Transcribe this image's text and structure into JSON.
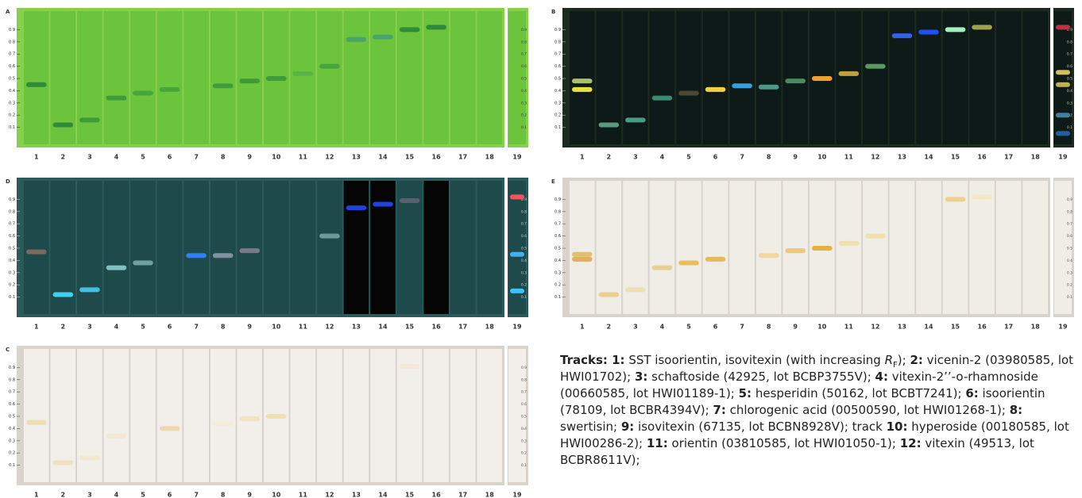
{
  "track_labels": [
    "1",
    "2",
    "3",
    "4",
    "5",
    "6",
    "7",
    "8",
    "9",
    "10",
    "11",
    "12",
    "13",
    "14",
    "15",
    "16",
    "17",
    "18",
    "19"
  ],
  "rf_lim": [
    0,
    1.0
  ],
  "rf_ticks": [
    0.9,
    0.8,
    0.7,
    0.6,
    0.5,
    0.4,
    0.3,
    0.2,
    0.1
  ],
  "panels": [
    {
      "label": "A",
      "plate_color": "#86d04c",
      "lane_color": "#6cc43c",
      "tick_color": "#2a4a20",
      "bands": [
        {
          "track": 1,
          "rf": 0.45,
          "color": "#2f8a3a"
        },
        {
          "track": 2,
          "rf": 0.12,
          "color": "#2f8a3a"
        },
        {
          "track": 3,
          "rf": 0.16,
          "color": "#3f9a3a"
        },
        {
          "track": 4,
          "rf": 0.34,
          "color": "#3f9a3a"
        },
        {
          "track": 5,
          "rf": 0.38,
          "color": "#4aa43c"
        },
        {
          "track": 6,
          "rf": 0.41,
          "color": "#4aa43c"
        },
        {
          "track": 8,
          "rf": 0.44,
          "color": "#3f9a3a"
        },
        {
          "track": 9,
          "rf": 0.48,
          "color": "#3f9a3a"
        },
        {
          "track": 10,
          "rf": 0.5,
          "color": "#3f9a3a"
        },
        {
          "track": 11,
          "rf": 0.54,
          "color": "#5ab444"
        },
        {
          "track": 12,
          "rf": 0.6,
          "color": "#4aa43c"
        },
        {
          "track": 13,
          "rf": 0.82,
          "color": "#4aa46a"
        },
        {
          "track": 14,
          "rf": 0.84,
          "color": "#4aa46a"
        },
        {
          "track": 15,
          "rf": 0.9,
          "color": "#2f8a3a"
        },
        {
          "track": 16,
          "rf": 0.92,
          "color": "#2f8a3a"
        }
      ]
    },
    {
      "label": "B",
      "plate_color": "#1c2a20",
      "lane_color": "#0e1a18",
      "tick_color": "#c0c0a0",
      "bands": [
        {
          "track": 1,
          "rf": 0.48,
          "color": "#a8c070"
        },
        {
          "track": 1,
          "rf": 0.41,
          "color": "#e8e040"
        },
        {
          "track": 2,
          "rf": 0.12,
          "color": "#5a9a80"
        },
        {
          "track": 3,
          "rf": 0.16,
          "color": "#4a9a80"
        },
        {
          "track": 4,
          "rf": 0.34,
          "color": "#3a8a70"
        },
        {
          "track": 5,
          "rf": 0.38,
          "color": "#4a4a30"
        },
        {
          "track": 6,
          "rf": 0.41,
          "color": "#f0d040"
        },
        {
          "track": 7,
          "rf": 0.44,
          "color": "#30a0e0"
        },
        {
          "track": 8,
          "rf": 0.43,
          "color": "#4a9a88"
        },
        {
          "track": 9,
          "rf": 0.48,
          "color": "#4a8a60"
        },
        {
          "track": 10,
          "rf": 0.5,
          "color": "#f0a030"
        },
        {
          "track": 11,
          "rf": 0.54,
          "color": "#c0a040"
        },
        {
          "track": 12,
          "rf": 0.6,
          "color": "#5a9a60"
        },
        {
          "track": 13,
          "rf": 0.85,
          "color": "#3060f0"
        },
        {
          "track": 14,
          "rf": 0.88,
          "color": "#2050f0"
        },
        {
          "track": 15,
          "rf": 0.9,
          "color": "#a0f0c0"
        },
        {
          "track": 16,
          "rf": 0.92,
          "color": "#a0a050"
        },
        {
          "track": 19,
          "rf": 0.92,
          "color": "#c03040"
        },
        {
          "track": 19,
          "rf": 0.55,
          "color": "#d0c060"
        },
        {
          "track": 19,
          "rf": 0.45,
          "color": "#c0b050"
        },
        {
          "track": 19,
          "rf": 0.2,
          "color": "#4080a0"
        },
        {
          "track": 19,
          "rf": 0.05,
          "color": "#2060a0"
        }
      ]
    },
    {
      "label": "D",
      "plate_color": "#2a5a5a",
      "lane_color": "#1f4a4c",
      "tick_color": "#c0d0d0",
      "dark_tracks": [
        13,
        14,
        16
      ],
      "bands": [
        {
          "track": 1,
          "rf": 0.47,
          "color": "#7a6a60"
        },
        {
          "track": 2,
          "rf": 0.12,
          "color": "#40d0f0"
        },
        {
          "track": 3,
          "rf": 0.16,
          "color": "#40c0e0"
        },
        {
          "track": 4,
          "rf": 0.34,
          "color": "#80c0c0"
        },
        {
          "track": 5,
          "rf": 0.38,
          "color": "#70a0a0"
        },
        {
          "track": 7,
          "rf": 0.44,
          "color": "#3080f0"
        },
        {
          "track": 8,
          "rf": 0.44,
          "color": "#8090a0"
        },
        {
          "track": 9,
          "rf": 0.48,
          "color": "#7a7a8a"
        },
        {
          "track": 12,
          "rf": 0.6,
          "color": "#6a9a9a"
        },
        {
          "track": 13,
          "rf": 0.83,
          "color": "#2040e0"
        },
        {
          "track": 14,
          "rf": 0.86,
          "color": "#2040e0"
        },
        {
          "track": 15,
          "rf": 0.89,
          "color": "#5a6070"
        },
        {
          "track": 19,
          "rf": 0.92,
          "color": "#ff5060"
        },
        {
          "track": 19,
          "rf": 0.45,
          "color": "#40b0f0"
        },
        {
          "track": 19,
          "rf": 0.15,
          "color": "#40c0ff"
        }
      ]
    },
    {
      "label": "E",
      "plate_color": "#d8d4cc",
      "lane_color": "#f0ede6",
      "tick_color": "#555555",
      "bands": [
        {
          "track": 1,
          "rf": 0.45,
          "color": "#e0c070"
        },
        {
          "track": 1,
          "rf": 0.41,
          "color": "#e0b060"
        },
        {
          "track": 2,
          "rf": 0.12,
          "color": "#e8d090"
        },
        {
          "track": 3,
          "rf": 0.16,
          "color": "#ece0b0"
        },
        {
          "track": 4,
          "rf": 0.34,
          "color": "#e8d090"
        },
        {
          "track": 5,
          "rf": 0.38,
          "color": "#e8c060"
        },
        {
          "track": 6,
          "rf": 0.41,
          "color": "#e8b860"
        },
        {
          "track": 8,
          "rf": 0.44,
          "color": "#f0d8a0"
        },
        {
          "track": 9,
          "rf": 0.48,
          "color": "#ecc880"
        },
        {
          "track": 10,
          "rf": 0.5,
          "color": "#e8b040"
        },
        {
          "track": 11,
          "rf": 0.54,
          "color": "#f0e0b0"
        },
        {
          "track": 12,
          "rf": 0.6,
          "color": "#f0e0b0"
        },
        {
          "track": 15,
          "rf": 0.9,
          "color": "#eed090"
        },
        {
          "track": 16,
          "rf": 0.92,
          "color": "#f0e8c0"
        }
      ]
    },
    {
      "label": "C",
      "plate_color": "#d8d4cc",
      "lane_color": "#f2efea",
      "tick_color": "#555555",
      "bands": [
        {
          "track": 1,
          "rf": 0.45,
          "color": "#ece0b0"
        },
        {
          "track": 2,
          "rf": 0.12,
          "color": "#eee0c0"
        },
        {
          "track": 3,
          "rf": 0.16,
          "color": "#f0e8d0"
        },
        {
          "track": 4,
          "rf": 0.34,
          "color": "#f0e8d0"
        },
        {
          "track": 6,
          "rf": 0.4,
          "color": "#eed8b0"
        },
        {
          "track": 8,
          "rf": 0.44,
          "color": "#f4ecd8"
        },
        {
          "track": 9,
          "rf": 0.48,
          "color": "#f0e4c0"
        },
        {
          "track": 10,
          "rf": 0.5,
          "color": "#eee0b0"
        },
        {
          "track": 15,
          "rf": 0.91,
          "color": "#f4e8d8"
        }
      ]
    }
  ],
  "caption": {
    "runs": [
      {
        "style": "b",
        "text": "Tracks: 1:"
      },
      {
        "style": "n",
        "text": " SST isoorientin, isovitexin (with increasing "
      },
      {
        "style": "i",
        "text": "R"
      },
      {
        "style": "sub",
        "text": "F"
      },
      {
        "style": "n",
        "text": "); "
      },
      {
        "style": "b",
        "text": "2:"
      },
      {
        "style": "n",
        "text": " vicenin-2 (03980585, lot HWI01702); "
      },
      {
        "style": "b",
        "text": "3:"
      },
      {
        "style": "n",
        "text": " schaftoside (42925, lot BCBP3755V); "
      },
      {
        "style": "b",
        "text": "4:"
      },
      {
        "style": "n",
        "text": " vitexin-2’’-o-rhamnoside (00660585, lot HWI01189-1); "
      },
      {
        "style": "b",
        "text": "5:"
      },
      {
        "style": "n",
        "text": " hesperidin (50162, lot BCBT7241); "
      },
      {
        "style": "b",
        "text": "6:"
      },
      {
        "style": "n",
        "text": " isoorientin (78109, lot BCBR4394V); "
      },
      {
        "style": "b",
        "text": "7:"
      },
      {
        "style": "n",
        "text": " chlorogenic acid (00500590, lot HWI01268-1); "
      },
      {
        "style": "b",
        "text": "8:"
      },
      {
        "style": "n",
        "text": " swertisin; "
      },
      {
        "style": "b",
        "text": "9:"
      },
      {
        "style": "n",
        "text": " isovitexin (67135, lot BCBN8928V); track "
      },
      {
        "style": "b",
        "text": "10:"
      },
      {
        "style": "n",
        "text": " hyperoside (00180585, lot HWI00286-2); "
      },
      {
        "style": "b",
        "text": "11:"
      },
      {
        "style": "n",
        "text": " orientin (03810585, lot HWI01050-1); "
      },
      {
        "style": "b",
        "text": "12:"
      },
      {
        "style": "n",
        "text": " vitexin (49513, lot BCBR8611V);"
      }
    ]
  }
}
